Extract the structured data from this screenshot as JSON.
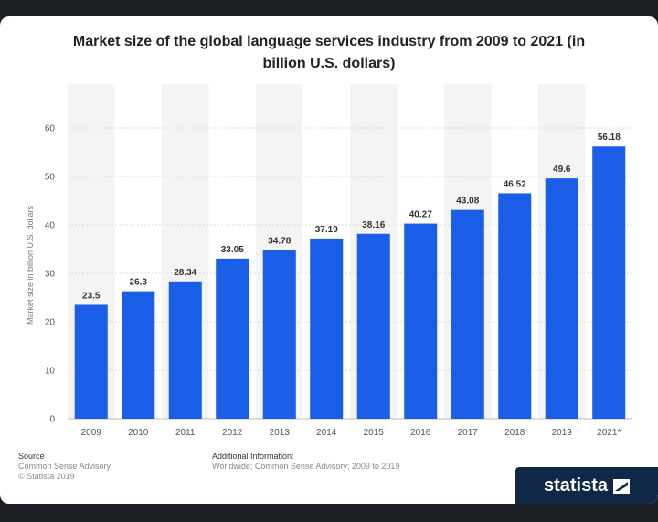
{
  "chart_data": {
    "type": "bar",
    "title": "Market size of the global language services industry from 2009 to 2021 (in billion U.S. dollars)",
    "title_lines": [
      "Market size of the global language services industry from 2009 to 2021 (in",
      "billion U.S. dollars)"
    ],
    "ylabel": "Market size in billion U.S. dollars",
    "xlabel": "",
    "categories": [
      "2009",
      "2010",
      "2011",
      "2012",
      "2013",
      "2014",
      "2015",
      "2016",
      "2017",
      "2018",
      "2019",
      "2021*"
    ],
    "values": [
      23.5,
      26.3,
      28.34,
      33.05,
      34.78,
      37.19,
      38.16,
      40.27,
      43.08,
      46.52,
      49.6,
      56.18
    ],
    "value_labels": [
      "23.5",
      "26.3",
      "28.34",
      "33.05",
      "34.78",
      "37.19",
      "38.16",
      "40.27",
      "43.08",
      "46.52",
      "49.6",
      "56.18"
    ],
    "ylim": [
      0,
      60
    ],
    "yticks": [
      0,
      10,
      20,
      30,
      40,
      50,
      60
    ],
    "grid": true,
    "bar_color": "#1a5ee8"
  },
  "footer": {
    "source_heading": "Source",
    "source_line1": "Common Sense Advisory",
    "source_line2": "© Statista 2019",
    "info_heading": "Additional Information:",
    "info_line1": "Worldwide; Common Sense Advisory; 2009 to 2019"
  },
  "brand": {
    "name": "statista",
    "icon": "statista-logo-icon"
  }
}
